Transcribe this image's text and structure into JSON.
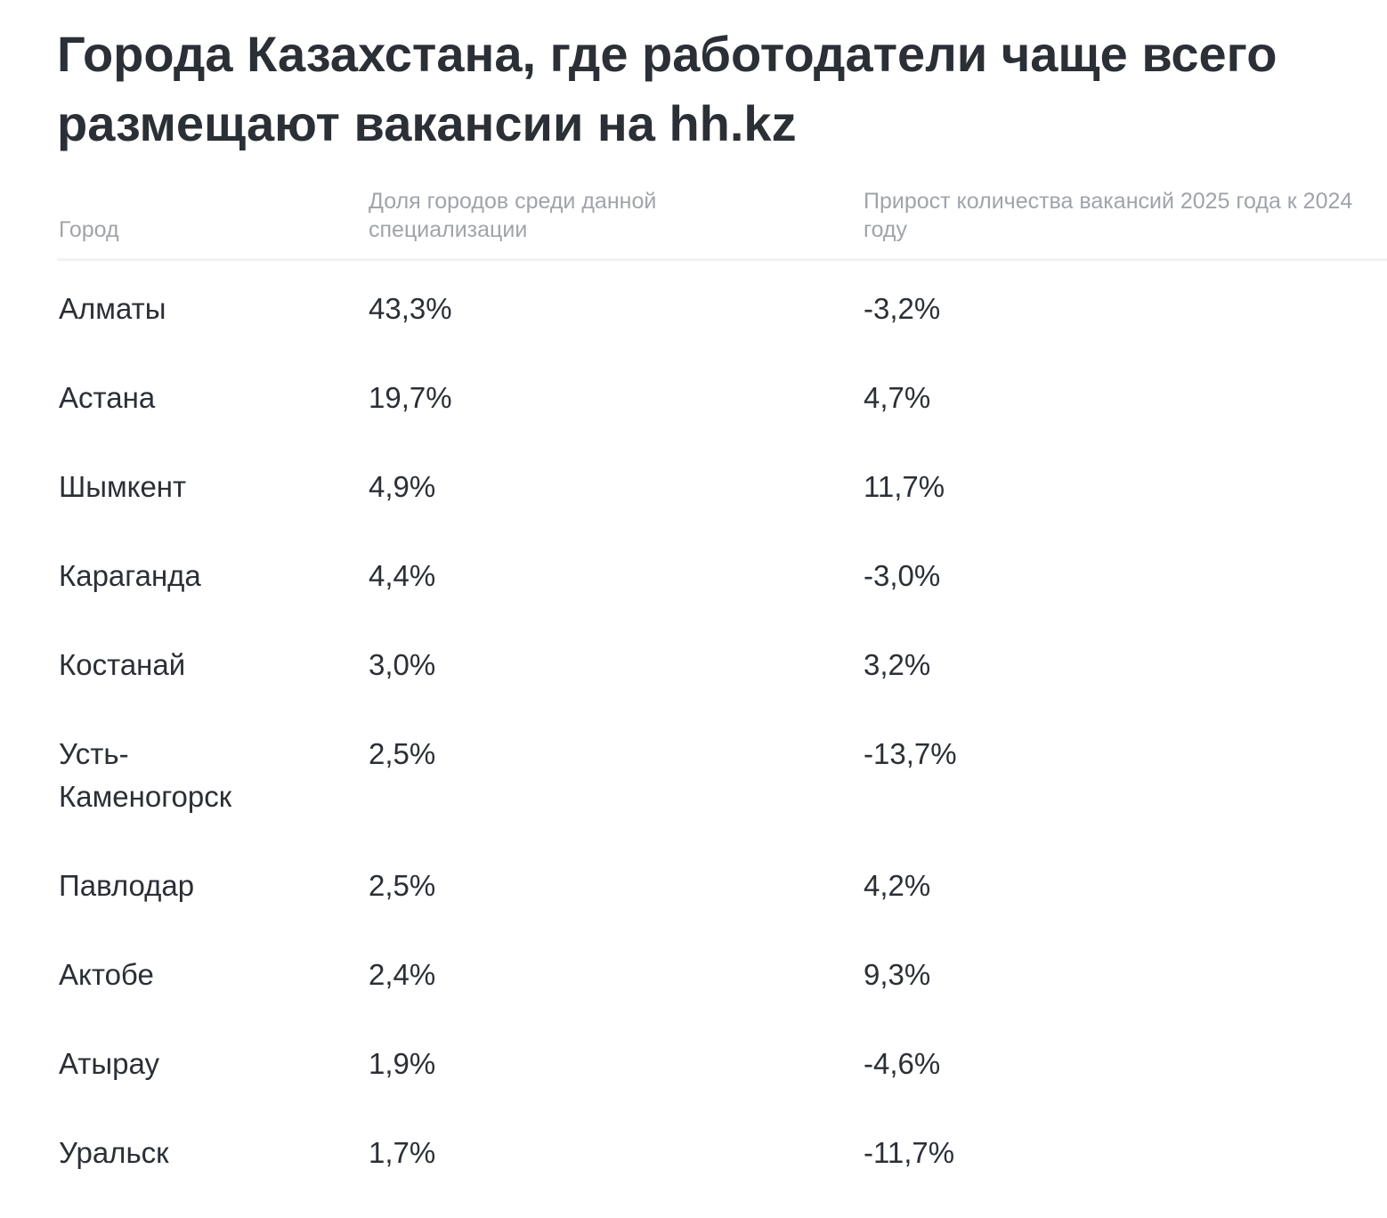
{
  "title": "Города Казахстана, где работодатели чаще всего размещают вакансии на hh.kz",
  "table": {
    "headers": [
      "Город",
      "Доля городов среди данной специализации",
      "Прирост количества вакансий 2025 года к 2024 году"
    ],
    "rows": [
      {
        "city": "Алматы",
        "share": "43,3%",
        "growth": "-3,2%"
      },
      {
        "city": "Астана",
        "share": "19,7%",
        "growth": "4,7%"
      },
      {
        "city": "Шымкент",
        "share": "4,9%",
        "growth": "11,7%"
      },
      {
        "city": "Караганда",
        "share": "4,4%",
        "growth": "-3,0%"
      },
      {
        "city": "Костанай",
        "share": "3,0%",
        "growth": "3,2%"
      },
      {
        "city": "Усть-Каменогорск",
        "share": "2,5%",
        "growth": "-13,7%"
      },
      {
        "city": "Павлодар",
        "share": "2,5%",
        "growth": "4,2%"
      },
      {
        "city": "Актобе",
        "share": "2,4%",
        "growth": "9,3%"
      },
      {
        "city": "Атырау",
        "share": "1,9%",
        "growth": "-4,6%"
      },
      {
        "city": "Уральск",
        "share": "1,7%",
        "growth": "-11,7%"
      }
    ]
  }
}
